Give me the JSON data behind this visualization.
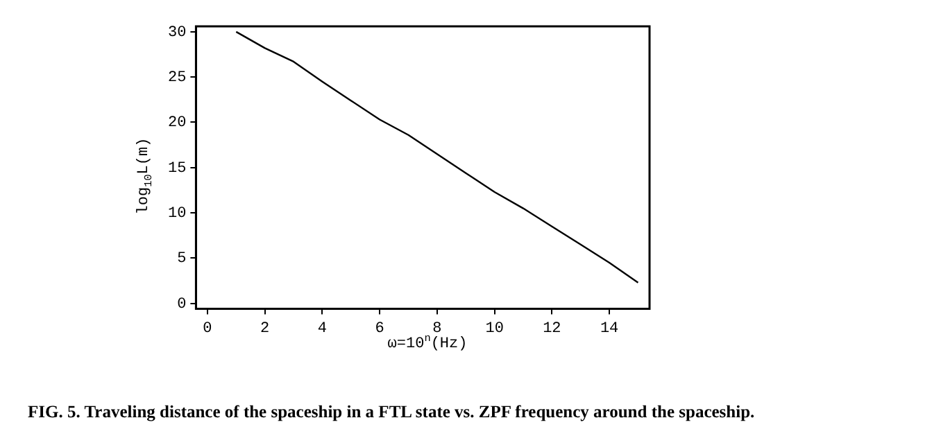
{
  "chart_data": {
    "type": "line",
    "xlabel": "ω=10$^{n}$(Hz)",
    "ylabel": "log$_{10}$L(m)",
    "x": [
      1,
      2,
      3,
      4,
      5,
      6,
      7,
      8,
      9,
      10,
      11,
      12,
      13,
      14,
      15
    ],
    "series": [
      {
        "color": "#000000",
        "values": [
          30,
          28.2,
          26.7,
          24.5,
          22.4,
          20.3,
          18.6,
          16.5,
          14.4,
          12.3,
          10.5,
          8.5,
          6.5,
          4.5,
          2.3
        ]
      }
    ],
    "xlim": [
      -0.4,
      15.4
    ],
    "xticks": [
      0,
      2,
      4,
      6,
      8,
      10,
      12,
      14
    ],
    "ylim": [
      -0.6,
      30.6
    ],
    "yticks": [
      0,
      5,
      10,
      15,
      20,
      25,
      30
    ],
    "grid": false,
    "legend": false,
    "marker": "none",
    "line_style": "solid",
    "annotations": [
      "FIG. 5. Traveling distance of the spaceship in a FTL state vs. ZPF frequency around the spaceship."
    ]
  }
}
